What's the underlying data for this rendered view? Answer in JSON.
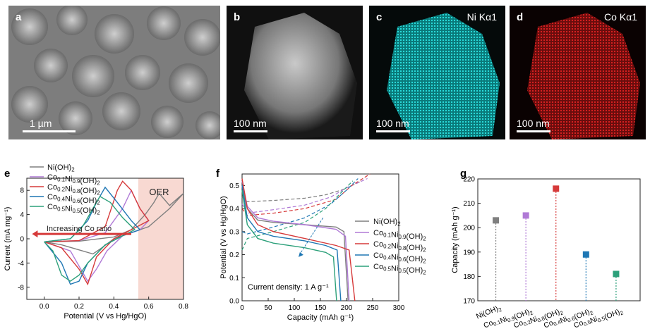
{
  "panels": {
    "a": {
      "letter": "a",
      "scale": "1 µm"
    },
    "b": {
      "letter": "b",
      "scale": "100 nm"
    },
    "c": {
      "letter": "c",
      "scale": "100 nm",
      "label": "Ni Kα1"
    },
    "d": {
      "letter": "d",
      "scale": "100 nm",
      "label": "Co Kα1"
    }
  },
  "colors": {
    "ni": "#7f7f7f",
    "co01": "#b07ad6",
    "co02": "#d63a3a",
    "co04": "#1f77b4",
    "co05": "#2ca07a",
    "oer": "#f8d9d2"
  },
  "chart_data": [
    {
      "type": "line",
      "letter": "e",
      "xlabel": "Potential (V vs Hg/HgO)",
      "ylabel": "Current (mA mg⁻¹)",
      "xlim": [
        -0.1,
        0.8
      ],
      "ylim": [
        -10,
        10
      ],
      "xticks": [
        "0.0",
        "0.2",
        "0.4",
        "0.6",
        "0.8"
      ],
      "yticks": [
        "-8",
        "-4",
        "0",
        "4",
        "8"
      ],
      "annotations": [
        "OER",
        "Increasing Co ratio"
      ],
      "legend": [
        "Ni(OH)2",
        "Co0.1Ni0.9(OH)2",
        "Co0.2Ni0.8(OH)2",
        "Co0.4Ni0.6(OH)2",
        "Co0.5Ni0.5(OH)2"
      ],
      "series": [
        {
          "name": "Ni(OH)2",
          "x": [
            0,
            0.2,
            0.4,
            0.5,
            0.58,
            0.63,
            0.66,
            0.72,
            0.8,
            0.72,
            0.6,
            0.5,
            0.4,
            0.33,
            0.28,
            0.22,
            0.1,
            0
          ],
          "y": [
            -0.5,
            -0.4,
            0.3,
            1.5,
            4,
            6,
            7.5,
            5.5,
            7.5,
            5,
            2,
            1,
            0,
            -1.5,
            -2.5,
            -2,
            -1,
            -0.5
          ]
        },
        {
          "name": "Co0.1Ni0.9(OH)2",
          "x": [
            0,
            0.2,
            0.35,
            0.45,
            0.5,
            0.55,
            0.6,
            0.55,
            0.45,
            0.36,
            0.3,
            0.25,
            0.15,
            0
          ],
          "y": [
            -0.5,
            -0.3,
            1,
            5,
            8,
            5,
            3,
            1.5,
            0.5,
            -2,
            -5,
            -7,
            -2,
            -0.5
          ]
        },
        {
          "name": "Co0.2Ni0.8(OH)2",
          "x": [
            0,
            0.2,
            0.35,
            0.42,
            0.45,
            0.5,
            0.55,
            0.6,
            0.5,
            0.4,
            0.3,
            0.25,
            0.2,
            0.1,
            0
          ],
          "y": [
            -0.5,
            -0.3,
            2,
            8,
            9.5,
            8,
            5,
            3,
            1.5,
            0,
            -3,
            -7.5,
            -5,
            -1.5,
            -0.5
          ]
        },
        {
          "name": "Co0.4Ni0.6(OH)2",
          "x": [
            0,
            0.15,
            0.25,
            0.3,
            0.35,
            0.42,
            0.5,
            0.55,
            0.45,
            0.35,
            0.25,
            0.2,
            0.15,
            0.1,
            0
          ],
          "y": [
            -0.5,
            0,
            3,
            6,
            8.5,
            6,
            3,
            1.5,
            0.5,
            -1,
            -4,
            -7,
            -7.5,
            -4,
            -0.5
          ]
        },
        {
          "name": "Co0.5Ni0.5(OH)2",
          "x": [
            0,
            0.15,
            0.22,
            0.28,
            0.32,
            0.38,
            0.45,
            0.52,
            0.45,
            0.35,
            0.25,
            0.2,
            0.15,
            0.1,
            0.05,
            0
          ],
          "y": [
            -0.5,
            0,
            2,
            5,
            7,
            6,
            3.5,
            1.5,
            0.5,
            -1,
            -4,
            -6,
            -7,
            -6,
            -2,
            -0.5
          ]
        }
      ]
    },
    {
      "type": "line",
      "letter": "f",
      "xlabel": "Capacity (mAh g⁻¹)",
      "ylabel": "Potential (V vs Hg/HgO)",
      "xlim": [
        0,
        300
      ],
      "ylim": [
        0,
        0.55
      ],
      "xticks": [
        "0",
        "50",
        "100",
        "150",
        "200",
        "250",
        "300"
      ],
      "yticks": [
        "0.0",
        "0.1",
        "0.2",
        "0.3",
        "0.4",
        "0.5"
      ],
      "annotations": [
        "Current density: 1 A g⁻¹"
      ],
      "legend": [
        "Ni(OH)2",
        "Co0.1Ni0.9(OH)2",
        "Co0.2Ni0.8(OH)2",
        "Co0.4Ni0.6(OH)2",
        "Co0.5Ni0.5(OH)2"
      ],
      "series": [
        {
          "name": "Ni(OH)2",
          "x": [
            0,
            10,
            30,
            60,
            120,
            180,
            195,
            203
          ],
          "y": [
            0.5,
            0.4,
            0.35,
            0.34,
            0.33,
            0.32,
            0.3,
            0
          ]
        },
        {
          "name": "Co0.1Ni0.9(OH)2",
          "x": [
            0,
            10,
            30,
            60,
            120,
            180,
            198,
            205
          ],
          "y": [
            0.52,
            0.41,
            0.36,
            0.345,
            0.33,
            0.31,
            0.28,
            0
          ]
        },
        {
          "name": "Co0.2Ni0.8(OH)2",
          "x": [
            0,
            10,
            30,
            60,
            120,
            180,
            205,
            216
          ],
          "y": [
            0.53,
            0.4,
            0.33,
            0.3,
            0.27,
            0.24,
            0.22,
            0
          ]
        },
        {
          "name": "Co0.4Ni0.6(OH)2",
          "x": [
            0,
            10,
            30,
            60,
            120,
            160,
            182,
            189
          ],
          "y": [
            0.5,
            0.36,
            0.3,
            0.28,
            0.26,
            0.24,
            0.22,
            0
          ]
        },
        {
          "name": "Co0.5Ni0.5(OH)2",
          "x": [
            0,
            10,
            30,
            60,
            120,
            160,
            175,
            181
          ],
          "y": [
            0.48,
            0.33,
            0.27,
            0.25,
            0.23,
            0.21,
            0.19,
            0
          ]
        }
      ],
      "charge_series": [
        {
          "name": "Ni(OH)2",
          "x": [
            0,
            10,
            60,
            120,
            160,
            190,
            230
          ],
          "y": [
            0.45,
            0.43,
            0.435,
            0.445,
            0.46,
            0.48,
            0.52
          ]
        },
        {
          "name": "Co0.1Ni0.9(OH)2",
          "x": [
            0,
            10,
            60,
            120,
            170,
            200,
            240
          ],
          "y": [
            0.42,
            0.38,
            0.395,
            0.415,
            0.45,
            0.49,
            0.53
          ]
        },
        {
          "name": "Co0.2Ni0.8(OH)2",
          "x": [
            0,
            10,
            60,
            120,
            180,
            210,
            245
          ],
          "y": [
            0.4,
            0.37,
            0.38,
            0.4,
            0.44,
            0.5,
            0.55
          ]
        },
        {
          "name": "Co0.4Ni0.6(OH)2",
          "x": [
            0,
            10,
            60,
            120,
            170,
            200,
            222
          ],
          "y": [
            0.3,
            0.29,
            0.32,
            0.36,
            0.42,
            0.48,
            0.53
          ]
        },
        {
          "name": "Co0.5Ni0.5(OH)2",
          "x": [
            0,
            10,
            60,
            120,
            160,
            190,
            212
          ],
          "y": [
            0.22,
            0.27,
            0.3,
            0.34,
            0.4,
            0.47,
            0.52
          ]
        }
      ]
    },
    {
      "type": "scatter",
      "letter": "g",
      "ylabel": "Capacity (mAh g⁻¹)",
      "ylim": [
        170,
        220
      ],
      "yticks": [
        "170",
        "180",
        "190",
        "200",
        "210",
        "220"
      ],
      "categories": [
        "Ni(OH)2",
        "Co0.1Ni0.9(OH)2",
        "Co0.2Ni0.8(OH)2",
        "Co0.4Ni0.6(OH)2",
        "Co0.5Ni0.5(OH)2"
      ],
      "values": [
        203,
        205,
        216,
        189,
        181
      ]
    }
  ]
}
